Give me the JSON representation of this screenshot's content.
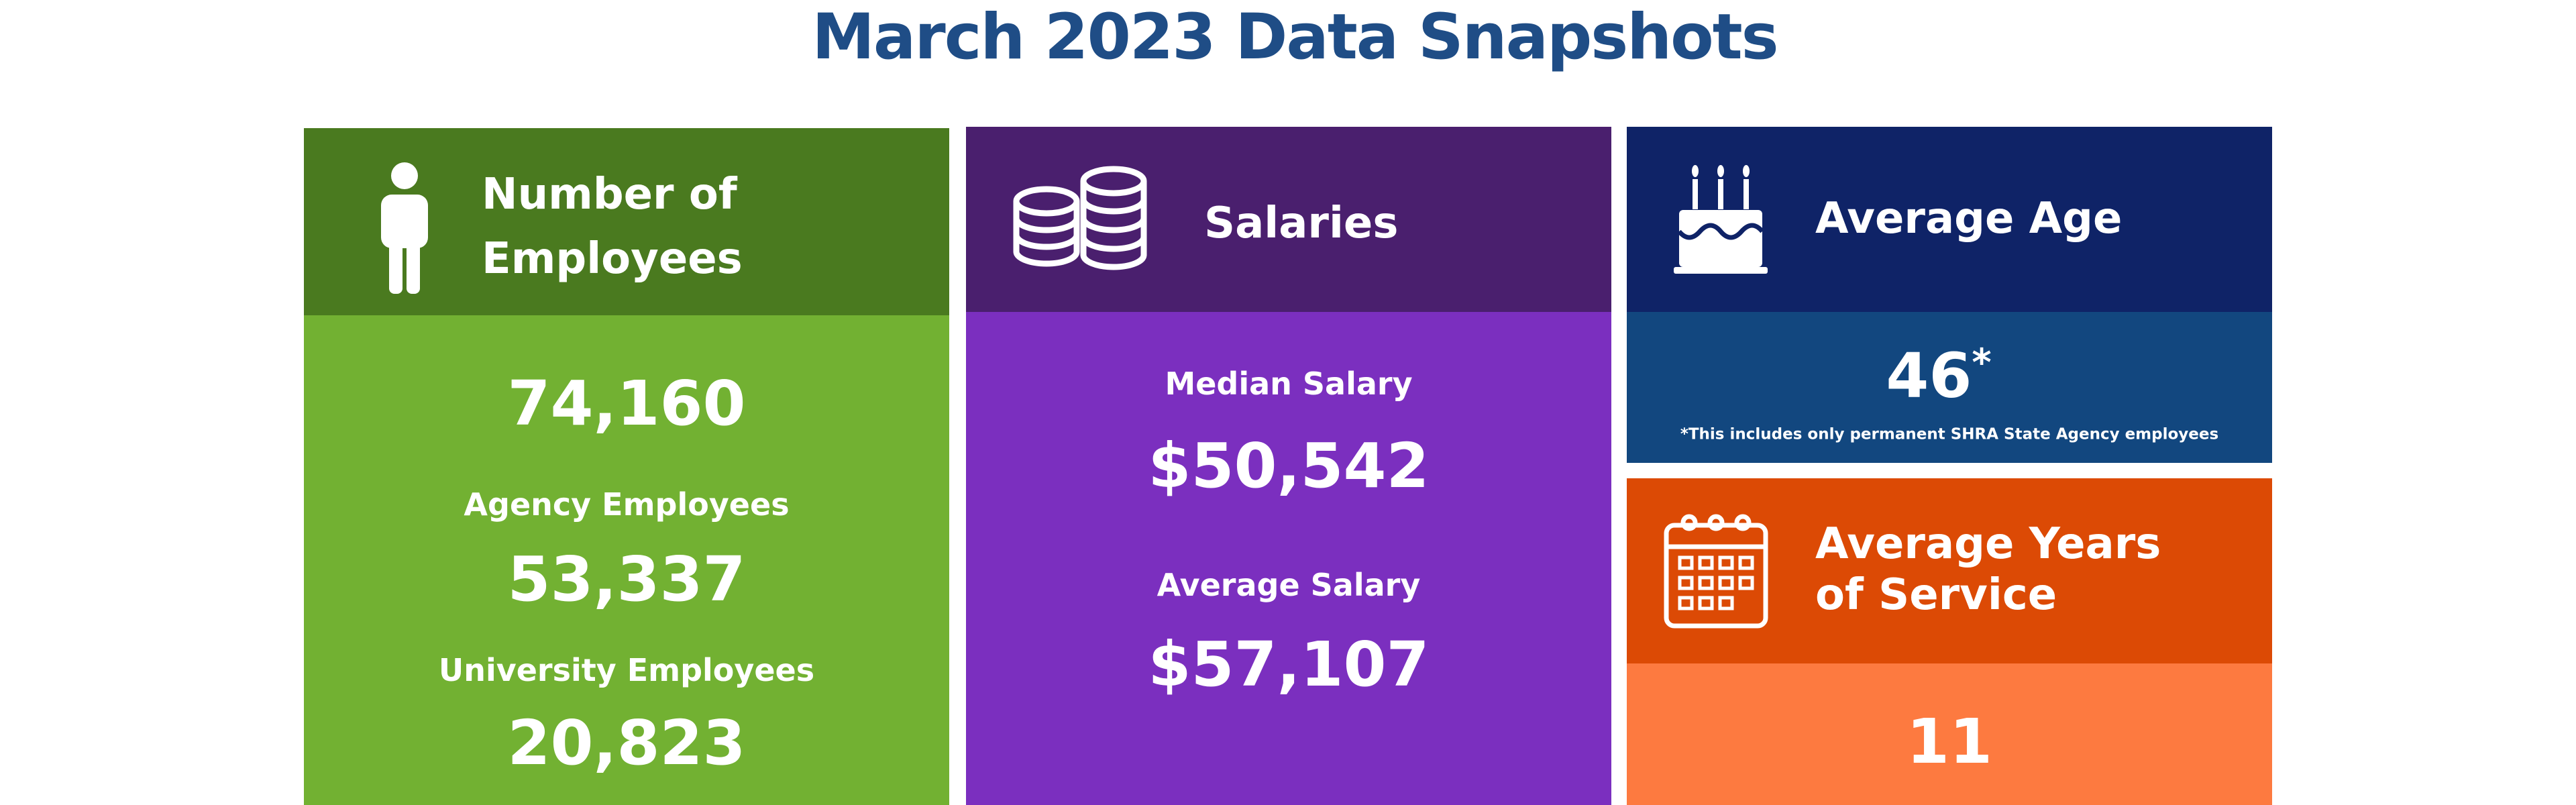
{
  "title": "March 2023 Data Snapshots",
  "employees": {
    "heading_line1": "Number of",
    "heading_line2": "Employees",
    "total": "74,160",
    "agency_label": "Agency Employees",
    "agency_value": "53,337",
    "university_label": "University Employees",
    "university_value": "20,823"
  },
  "salaries": {
    "heading": "Salaries",
    "median_label": "Median Salary",
    "median_value": "$50,542",
    "average_label": "Average Salary",
    "average_value": "$57,107"
  },
  "age": {
    "heading": "Average Age",
    "value": "46",
    "marker": "*",
    "footnote": "*This includes only permanent SHRA State Agency employees"
  },
  "service": {
    "heading_line1": "Average Years",
    "heading_line2": "of Service",
    "value": "11"
  }
}
